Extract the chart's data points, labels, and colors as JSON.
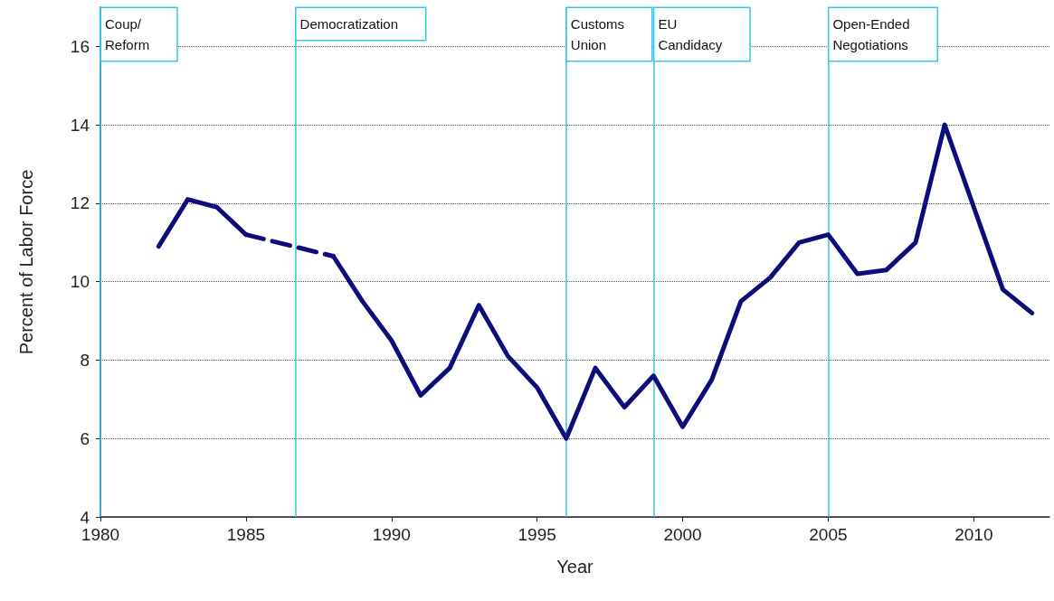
{
  "chart_data": {
    "type": "line",
    "xlabel": "Year",
    "ylabel": "Percent of Labor Force",
    "xlim": [
      1980,
      2012.6
    ],
    "xticks": [
      1980,
      1985,
      1990,
      1995,
      2000,
      2005,
      2010
    ],
    "ylim": [
      4,
      17
    ],
    "yticks": [
      4,
      6,
      8,
      10,
      12,
      14,
      16
    ],
    "grid": "y",
    "marker": "none",
    "series": [
      {
        "color": "#0c0c7a",
        "line_style": "solid",
        "x": [
          1982,
          1983,
          1984,
          1985
        ],
        "values": [
          10.9,
          12.1,
          11.9,
          11.2
        ]
      },
      {
        "color": "#0c0c7a",
        "line_style": "dashed",
        "x": [
          1985,
          1988
        ],
        "values": [
          11.2,
          10.65
        ]
      },
      {
        "color": "#0c0c7a",
        "line_style": "solid",
        "x": [
          1988,
          1989,
          1990,
          1991,
          1992,
          1993,
          1994,
          1995,
          1996,
          1997,
          1998,
          1999,
          2000,
          2001,
          2002,
          2003,
          2004,
          2005,
          2006,
          2007,
          2008,
          2009,
          2010,
          2011,
          2012
        ],
        "values": [
          10.65,
          9.5,
          8.5,
          7.1,
          7.8,
          9.4,
          8.1,
          7.3,
          6.0,
          7.8,
          6.8,
          7.6,
          6.3,
          7.5,
          9.5,
          10.1,
          11.0,
          11.2,
          10.2,
          10.3,
          11.0,
          14.0,
          11.9,
          9.8,
          9.2
        ]
      }
    ],
    "ref_lines": [
      {
        "axis": "x",
        "value": 1980,
        "label": "Coup/\nReform",
        "color": "#33c6e8"
      },
      {
        "axis": "x",
        "value": 1986.7,
        "label": "Democratization",
        "color": "#33c6e8"
      },
      {
        "axis": "x",
        "value": 1996,
        "label": "Customs\nUnion",
        "color": "#33c6e8"
      },
      {
        "axis": "x",
        "value": 1999,
        "label": "EU\nCandidacy",
        "color": "#33c6e8"
      },
      {
        "axis": "x",
        "value": 2005,
        "label": "Open-Ended\nNegotiations",
        "color": "#33c6e8"
      }
    ]
  }
}
